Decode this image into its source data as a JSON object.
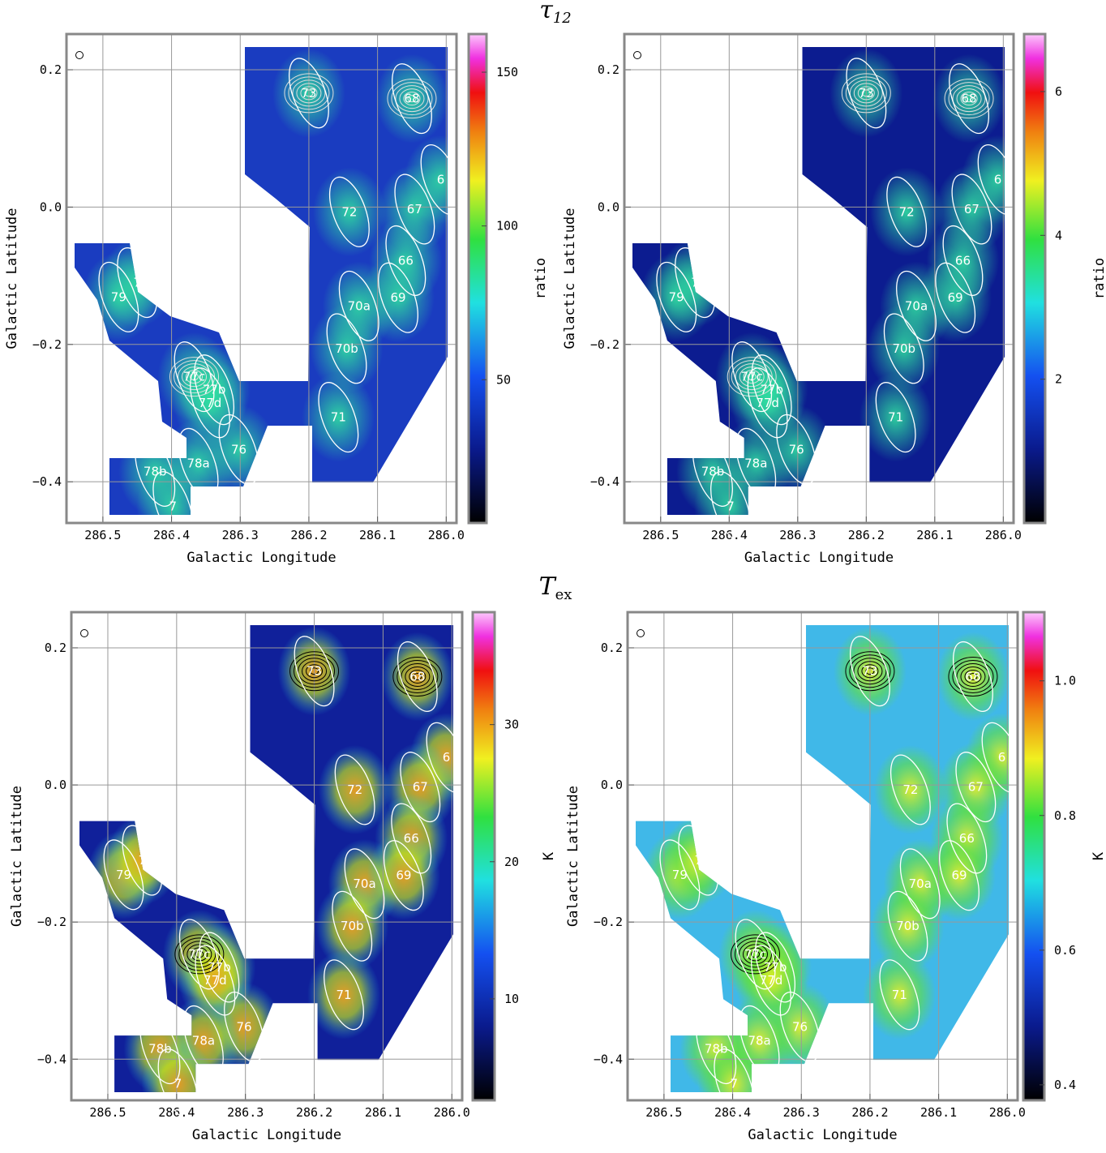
{
  "titles": [
    {
      "main": "τ",
      "sub": "12"
    },
    {
      "main": "T",
      "sub": "ex"
    }
  ],
  "clumps": [
    {
      "label": "73",
      "l": 286.2,
      "b": 0.166
    },
    {
      "label": "68",
      "l": 286.05,
      "b": 0.158
    },
    {
      "label": "6",
      "l": 286.008,
      "b": 0.04
    },
    {
      "label": "72",
      "l": 286.141,
      "b": -0.007
    },
    {
      "label": "67",
      "l": 286.046,
      "b": -0.003
    },
    {
      "label": "66",
      "l": 286.059,
      "b": -0.078
    },
    {
      "label": "70a",
      "l": 286.127,
      "b": -0.144
    },
    {
      "label": "69",
      "l": 286.07,
      "b": -0.132
    },
    {
      "label": "70b",
      "l": 286.145,
      "b": -0.206
    },
    {
      "label": "71",
      "l": 286.157,
      "b": -0.306
    },
    {
      "label": "77c",
      "l": 286.367,
      "b": -0.247
    },
    {
      "label": "77b",
      "l": 286.338,
      "b": -0.266
    },
    {
      "label": "77d",
      "l": 286.344,
      "b": -0.285
    },
    {
      "label": "76",
      "l": 286.302,
      "b": -0.353
    },
    {
      "label": "78a",
      "l": 286.361,
      "b": -0.373
    },
    {
      "label": "78b",
      "l": 286.424,
      "b": -0.385
    },
    {
      "label": "7",
      "l": 286.398,
      "b": -0.436
    },
    {
      "label": "79",
      "l": 286.477,
      "b": -0.131
    },
    {
      "label": "7",
      "l": 286.45,
      "b": -0.11
    }
  ],
  "chart_data": [
    {
      "type": "map",
      "xlabel": "Galactic Longitude",
      "ylabel": "Galactic Latitude",
      "xlim": [
        286.553,
        285.985
      ],
      "ylim": [
        -0.46,
        0.252
      ],
      "xticks": [
        286.5,
        286.4,
        286.3,
        286.2,
        286.1,
        {
          "value": 286,
          "label": "286.0"
        }
      ],
      "yticks": [
        0.2,
        {
          "value": 0,
          "label": "0.0"
        },
        {
          "value": -0.2,
          "label": "−0.2"
        },
        {
          "value": -0.4,
          "label": "−0.4"
        }
      ],
      "colorbar": {
        "label": "ratio",
        "lim": [
          3.4,
          162.4
        ],
        "ticks": [
          50,
          100,
          150
        ]
      },
      "contour_color": "#ddd"
    },
    {
      "type": "map",
      "xlabel": "Galactic Longitude",
      "ylabel": "Galactic Latitude",
      "xlim": [
        286.553,
        285.985
      ],
      "ylim": [
        -0.46,
        0.252
      ],
      "xticks": [
        286.5,
        286.4,
        286.3,
        286.2,
        286.1,
        {
          "value": 286,
          "label": "286.0"
        }
      ],
      "yticks": [
        0.2,
        {
          "value": 0,
          "label": "0.0"
        },
        {
          "value": -0.2,
          "label": "−0.2"
        },
        {
          "value": -0.4,
          "label": "−0.4"
        }
      ],
      "colorbar": {
        "label": "ratio",
        "lim": [
          0,
          6.8
        ],
        "ticks": [
          2,
          4,
          6
        ]
      },
      "contour_color": "#ddd"
    },
    {
      "type": "map",
      "xlabel": "Galactic Longitude",
      "ylabel": "Galactic Latitude",
      "xlim": [
        286.553,
        285.985
      ],
      "ylim": [
        -0.46,
        0.252
      ],
      "xticks": [
        286.5,
        286.4,
        286.3,
        286.2,
        286.1,
        {
          "value": 286,
          "label": "286.0"
        }
      ],
      "yticks": [
        0.2,
        {
          "value": 0,
          "label": "0.0"
        },
        {
          "value": -0.2,
          "label": "−0.2"
        },
        {
          "value": -0.4,
          "label": "−0.4"
        }
      ],
      "colorbar": {
        "label": "K",
        "lim": [
          2.6,
          38.2
        ],
        "ticks": [
          10,
          20,
          30
        ]
      },
      "contour_color": "#000"
    },
    {
      "type": "map",
      "xlabel": "Galactic Longitude",
      "ylabel": "Galactic Latitude",
      "xlim": [
        286.553,
        285.985
      ],
      "ylim": [
        -0.46,
        0.252
      ],
      "xticks": [
        286.5,
        286.4,
        286.3,
        286.2,
        286.1,
        {
          "value": 286,
          "label": "286.0"
        }
      ],
      "yticks": [
        0.2,
        {
          "value": 0,
          "label": "0.0"
        },
        {
          "value": -0.2,
          "label": "−0.2"
        },
        {
          "value": -0.4,
          "label": "−0.4"
        }
      ],
      "colorbar": {
        "label": "K",
        "lim": [
          0.377,
          1.102
        ],
        "ticks": [
          0.4,
          0.6,
          0.8,
          {
            "value": 1,
            "label": "1.0"
          }
        ]
      },
      "contour_color": "#000"
    }
  ]
}
